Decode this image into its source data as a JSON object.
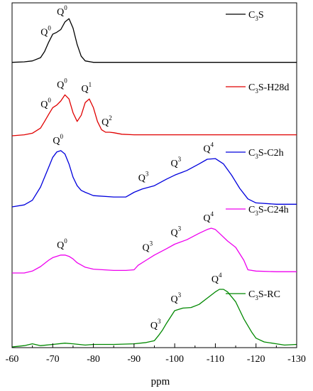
{
  "chart_data": {
    "type": "line",
    "xlabel": "ppm",
    "ylabel": "",
    "xlim": [
      -60,
      -130
    ],
    "x_reversed": true,
    "ticks": [
      "-60",
      "-70",
      "-80",
      "-90",
      "-100",
      "-110",
      "-120",
      "-130"
    ],
    "tick_values": [
      -60,
      -70,
      -80,
      -90,
      -100,
      -110,
      -120,
      -130
    ],
    "grid": false,
    "series": [
      {
        "name": "C3S",
        "legend": {
          "main": "C",
          "sub": "3",
          "rest": "S"
        },
        "color": "#000000",
        "x": [
          -60,
          -63,
          -65,
          -67,
          -68,
          -69,
          -70,
          -71,
          -72,
          -73,
          -74,
          -75,
          -76,
          -77,
          -78,
          -80,
          -85,
          -90,
          -100,
          -110,
          -120,
          -130
        ],
        "y": [
          0.02,
          0.03,
          0.05,
          0.12,
          0.25,
          0.45,
          0.62,
          0.66,
          0.72,
          0.88,
          0.95,
          0.75,
          0.4,
          0.15,
          0.05,
          0.02,
          0.02,
          0.02,
          0.02,
          0.02,
          0.02,
          0.02
        ]
      },
      {
        "name": "C3S-H28d",
        "legend": {
          "main": "C",
          "sub": "3",
          "rest": "S-H28d"
        },
        "color": "#e00000",
        "x": [
          -60,
          -63,
          -65,
          -67,
          -68,
          -69,
          -70,
          -71,
          -72,
          -73,
          -74,
          -75,
          -76,
          -77,
          -78,
          -79,
          -80,
          -81,
          -82,
          -83,
          -84,
          -85,
          -87,
          -90,
          -100,
          -110,
          -120,
          -130
        ],
        "y": [
          0.0,
          0.02,
          0.05,
          0.15,
          0.28,
          0.42,
          0.55,
          0.6,
          0.68,
          0.8,
          0.72,
          0.45,
          0.28,
          0.4,
          0.65,
          0.72,
          0.55,
          0.28,
          0.12,
          0.07,
          0.07,
          0.06,
          0.03,
          0.02,
          0.02,
          0.02,
          0.02,
          0.02
        ]
      },
      {
        "name": "C3S-C2h",
        "legend": {
          "main": "C",
          "sub": "3",
          "rest": "S-C2h"
        },
        "color": "#0000dd",
        "x": [
          -60,
          -63,
          -65,
          -67,
          -69,
          -70,
          -71,
          -72,
          -73,
          -74,
          -75,
          -76,
          -77,
          -78,
          -80,
          -85,
          -88,
          -90,
          -92,
          -95,
          -98,
          -100,
          -103,
          -106,
          -108,
          -110,
          -112,
          -114,
          -116,
          -118,
          -120,
          -125,
          -130
        ],
        "y": [
          0.0,
          0.03,
          0.1,
          0.3,
          0.6,
          0.75,
          0.83,
          0.85,
          0.8,
          0.65,
          0.45,
          0.32,
          0.25,
          0.22,
          0.17,
          0.15,
          0.15,
          0.22,
          0.27,
          0.32,
          0.42,
          0.48,
          0.55,
          0.65,
          0.72,
          0.73,
          0.65,
          0.48,
          0.28,
          0.12,
          0.06,
          0.04,
          0.04
        ]
      },
      {
        "name": "C3S-C24h",
        "legend": {
          "main": "C",
          "sub": "3",
          "rest": "S-C24h"
        },
        "color": "#ee00ee",
        "x": [
          -60,
          -63,
          -65,
          -67,
          -69,
          -70,
          -72,
          -73,
          -74,
          -75,
          -76,
          -78,
          -80,
          -85,
          -88,
          -90,
          -91,
          -93,
          -95,
          -98,
          -100,
          -103,
          -106,
          -108,
          -109,
          -110,
          -111,
          -113,
          -115,
          -117,
          -118,
          -120,
          -125,
          -130
        ],
        "y": [
          0.0,
          0.0,
          0.03,
          0.1,
          0.2,
          0.24,
          0.28,
          0.28,
          0.26,
          0.22,
          0.16,
          0.09,
          0.06,
          0.04,
          0.04,
          0.05,
          0.12,
          0.2,
          0.28,
          0.38,
          0.45,
          0.52,
          0.62,
          0.68,
          0.7,
          0.68,
          0.62,
          0.5,
          0.4,
          0.2,
          0.05,
          0.03,
          0.02,
          0.02
        ]
      },
      {
        "name": "C3S-RC",
        "legend": {
          "main": "C",
          "sub": "3",
          "rest": "S-RC"
        },
        "color": "#008800",
        "x": [
          -60,
          -63,
          -65,
          -67,
          -70,
          -73,
          -75,
          -78,
          -80,
          -85,
          -90,
          -93,
          -95,
          -96,
          -97,
          -98,
          -100,
          -102,
          -104,
          -106,
          -108,
          -110,
          -111,
          -112,
          -113,
          -115,
          -117,
          -119,
          -120,
          -122,
          -125,
          -127,
          -130
        ],
        "y": [
          0.0,
          0.02,
          0.05,
          0.02,
          0.04,
          0.06,
          0.05,
          0.03,
          0.04,
          0.04,
          0.05,
          0.07,
          0.1,
          0.18,
          0.27,
          0.38,
          0.58,
          0.62,
          0.63,
          0.68,
          0.78,
          0.88,
          0.92,
          0.92,
          0.88,
          0.72,
          0.45,
          0.23,
          0.14,
          0.08,
          0.05,
          0.03,
          0.04
        ]
      }
    ],
    "annotations": [
      {
        "series": 0,
        "label": "Q",
        "sup": "0",
        "x": -69
      },
      {
        "series": 0,
        "label": "Q",
        "sup": "0",
        "x": -73
      },
      {
        "series": 1,
        "label": "Q",
        "sup": "0",
        "x": -69
      },
      {
        "series": 1,
        "label": "Q",
        "sup": "0",
        "x": -73
      },
      {
        "series": 1,
        "label": "Q",
        "sup": "1",
        "x": -79
      },
      {
        "series": 1,
        "label": "Q",
        "sup": "2",
        "x": -84
      },
      {
        "series": 2,
        "label": "Q",
        "sup": "0",
        "x": -72
      },
      {
        "series": 2,
        "label": "Q",
        "sup": "3",
        "x": -93
      },
      {
        "series": 2,
        "label": "Q",
        "sup": "3",
        "x": -101
      },
      {
        "series": 2,
        "label": "Q",
        "sup": "4",
        "x": -109
      },
      {
        "series": 3,
        "label": "Q",
        "sup": "0",
        "x": -73
      },
      {
        "series": 3,
        "label": "Q",
        "sup": "3",
        "x": -94
      },
      {
        "series": 3,
        "label": "Q",
        "sup": "3",
        "x": -101
      },
      {
        "series": 3,
        "label": "Q",
        "sup": "4",
        "x": -109
      },
      {
        "series": 4,
        "label": "Q",
        "sup": "3",
        "x": -96
      },
      {
        "series": 4,
        "label": "Q",
        "sup": "3",
        "x": -101
      },
      {
        "series": 4,
        "label": "Q",
        "sup": "4",
        "x": -111
      }
    ]
  }
}
